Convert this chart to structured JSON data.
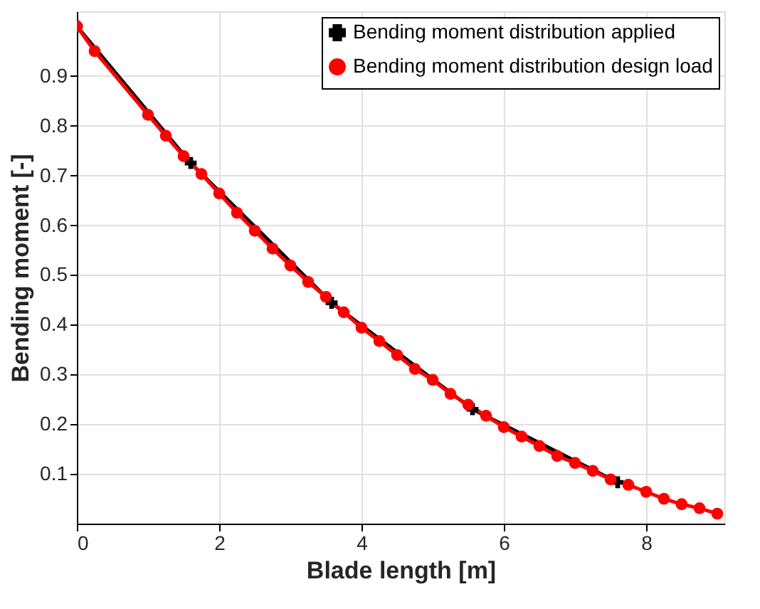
{
  "chart_data": {
    "type": "line",
    "xlabel": "Blade length [m]",
    "ylabel": "Bending moment [-]",
    "xlim": [
      0,
      9.1
    ],
    "ylim": [
      0,
      1.03
    ],
    "xticks": [
      0,
      2,
      4,
      6,
      8
    ],
    "yticks": [
      0.1,
      0.2,
      0.3,
      0.4,
      0.5,
      0.6,
      0.7,
      0.8,
      0.9
    ],
    "grid": true,
    "legend": "top right",
    "line_style": "solid",
    "series": [
      {
        "name": "Bending moment distribution applied",
        "color": "#000000",
        "marker": "cross",
        "x": [
          0,
          1.6,
          3.58,
          5.56,
          7.6
        ],
        "values": [
          1.0,
          0.725,
          0.444,
          0.23,
          0.083
        ]
      },
      {
        "name": "Bending moment distribution design load",
        "color": "#ff0000",
        "marker": "circle",
        "x": [
          0,
          0.25,
          1.0,
          1.25,
          1.5,
          1.75,
          2.0,
          2.25,
          2.5,
          2.75,
          3.0,
          3.25,
          3.5,
          3.75,
          4.0,
          4.25,
          4.5,
          4.75,
          5.0,
          5.25,
          5.5,
          5.75,
          6.0,
          6.25,
          6.5,
          6.75,
          7.0,
          7.25,
          7.5,
          7.75,
          8.0,
          8.25,
          8.5,
          8.75,
          9.0
        ],
        "values": [
          1.0,
          0.95,
          0.822,
          0.78,
          0.739,
          0.703,
          0.664,
          0.625,
          0.589,
          0.553,
          0.519,
          0.486,
          0.456,
          0.425,
          0.394,
          0.367,
          0.339,
          0.311,
          0.289,
          0.261,
          0.239,
          0.217,
          0.194,
          0.175,
          0.156,
          0.136,
          0.122,
          0.106,
          0.089,
          0.078,
          0.064,
          0.05,
          0.039,
          0.031,
          0.02
        ]
      }
    ]
  }
}
